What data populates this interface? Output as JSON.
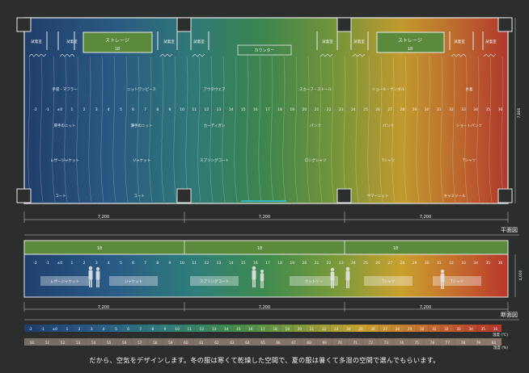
{
  "plan": {
    "title": "平面図",
    "rooms": [
      "試着室",
      "試着室",
      "試着室",
      "試着室",
      "試着室",
      "試着室",
      "試着室",
      "試着室"
    ],
    "storage_left": {
      "label": "ストレージ",
      "value": "18"
    },
    "storage_right": {
      "label": "ストレージ",
      "value": "18"
    },
    "counter": "カウンター",
    "scale": [
      "-2",
      "-1",
      "±0",
      "1",
      "2",
      "3",
      "4",
      "5",
      "6",
      "7",
      "8",
      "9",
      "10",
      "11",
      "12",
      "13",
      "14",
      "15",
      "16",
      "17",
      "18",
      "19",
      "20",
      "21",
      "22",
      "23",
      "24",
      "25",
      "26",
      "27",
      "28",
      "29",
      "30",
      "31",
      "32",
      "33",
      "34",
      "35",
      "36"
    ],
    "row1": [
      "手袋・マフラー",
      "ニットワンピース",
      "アウタウェア",
      "スカーフ・ストール",
      "ショール・サンダル",
      "水着"
    ],
    "row2": [
      "厚手のニット",
      "薄手のニット",
      "カーディガン",
      "パンツ",
      "パンツ",
      "ショートパンツ"
    ],
    "row3": [
      "レザージャケット",
      "ジャケット",
      "スプリングコート",
      "ロングシャツ",
      "Tシャツ",
      "Tシャツ"
    ],
    "row4": [
      "コート",
      "コート",
      "サマーニット",
      "キャミソール"
    ],
    "dims": [
      "7,200",
      "7,200",
      "7,200"
    ],
    "depth": "7,800"
  },
  "section": {
    "title": "断面図",
    "roof_values": [
      "18",
      "18",
      "18"
    ],
    "labels": [
      "レザージャケット",
      "ジャケット",
      "スプリングコート",
      "カットソー",
      "Tシャツ",
      "Tシャツ"
    ],
    "dims": [
      "7,200",
      "7,200",
      "7,200"
    ],
    "height": "4,000"
  },
  "legend": {
    "temp_values": [
      "-2",
      "-1",
      "±0",
      "1",
      "2",
      "3",
      "4",
      "5",
      "6",
      "7",
      "8",
      "9",
      "10",
      "11",
      "12",
      "13",
      "14",
      "15",
      "16",
      "17",
      "18",
      "19",
      "20",
      "21",
      "22",
      "23",
      "24",
      "25",
      "26",
      "27",
      "28",
      "29",
      "30",
      "31",
      "32",
      "33",
      "34",
      "35",
      "36"
    ],
    "temp_unit": "温度 (℃)",
    "hum_values": [
      "50",
      "51",
      "52",
      "53",
      "54",
      "55",
      "56",
      "57",
      "58",
      "59",
      "60",
      "61",
      "62",
      "63",
      "64",
      "65",
      "66",
      "67",
      "68",
      "69",
      "70",
      "71",
      "72",
      "73",
      "74",
      "75",
      "76",
      "77",
      "78",
      "79",
      "80"
    ],
    "hum_unit": "湿度 (%)"
  },
  "caption": "だから、空気をデザインします。冬の服は寒くて乾燥した空間で、夏の服は暑くて多湿の空間で選んでもらいます。",
  "colors": {
    "cold": "#1f3f6e",
    "mid": "#3f8a4e",
    "warm": "#c9a02e",
    "hot": "#b7382c",
    "background": "#2b2e2d"
  }
}
